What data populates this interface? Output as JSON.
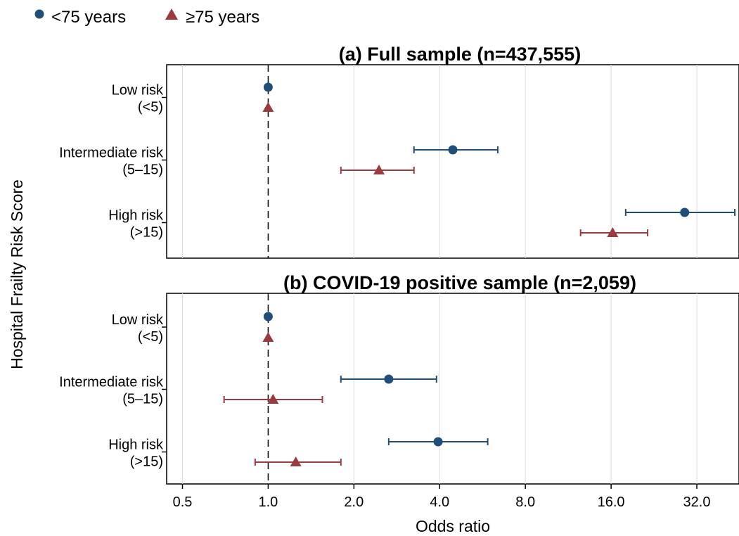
{
  "chart_data": {
    "type": "scatter",
    "subtype": "forest-plot",
    "x_scale": "log2",
    "xlabel": "Odds ratio",
    "ylabel": "Hospital Frailty Risk Score",
    "xlim": [
      0.44,
      45
    ],
    "x_ticks": [
      0.5,
      1.0,
      2.0,
      4.0,
      8.0,
      16.0,
      32.0
    ],
    "x_tick_labels": [
      "0.5",
      "1.0",
      "2.0",
      "4.0",
      "8.0",
      "16.0",
      "32.0"
    ],
    "reference_line": 1.0,
    "grid": "vertical",
    "legend_position": "top-left",
    "categories": [
      {
        "line1": "Low risk",
        "line2": "(<5)"
      },
      {
        "line1": "Intermediate risk",
        "line2": "(5–15)"
      },
      {
        "line1": "High risk",
        "line2": "(>15)"
      }
    ],
    "series_meta": [
      {
        "name": "<75 years",
        "marker": "circle",
        "color": "#1f4e79"
      },
      {
        "name": "≥75 years",
        "marker": "triangle",
        "color": "#9b3a3f"
      }
    ],
    "panels": [
      {
        "title": "(a) Full sample (n=437,555)",
        "series": [
          {
            "name": "<75 years",
            "or": [
              1.0,
              4.45,
              29.0
            ],
            "lo": [
              1.0,
              3.25,
              18.0
            ],
            "hi": [
              1.0,
              6.4,
              43.5
            ]
          },
          {
            "name": "≥75 years",
            "or": [
              1.0,
              2.45,
              16.2
            ],
            "lo": [
              1.0,
              1.8,
              12.5
            ],
            "hi": [
              1.0,
              3.25,
              21.5
            ]
          }
        ]
      },
      {
        "title": "(b) COVID-19 positive sample (n=2,059)",
        "series": [
          {
            "name": "<75 years",
            "or": [
              1.0,
              2.65,
              3.95
            ],
            "lo": [
              1.0,
              1.8,
              2.65
            ],
            "hi": [
              1.0,
              3.9,
              5.9
            ]
          },
          {
            "name": "≥75 years",
            "or": [
              1.0,
              1.04,
              1.25
            ],
            "lo": [
              1.0,
              0.7,
              0.9
            ],
            "hi": [
              1.0,
              1.55,
              1.8
            ]
          }
        ]
      }
    ]
  }
}
